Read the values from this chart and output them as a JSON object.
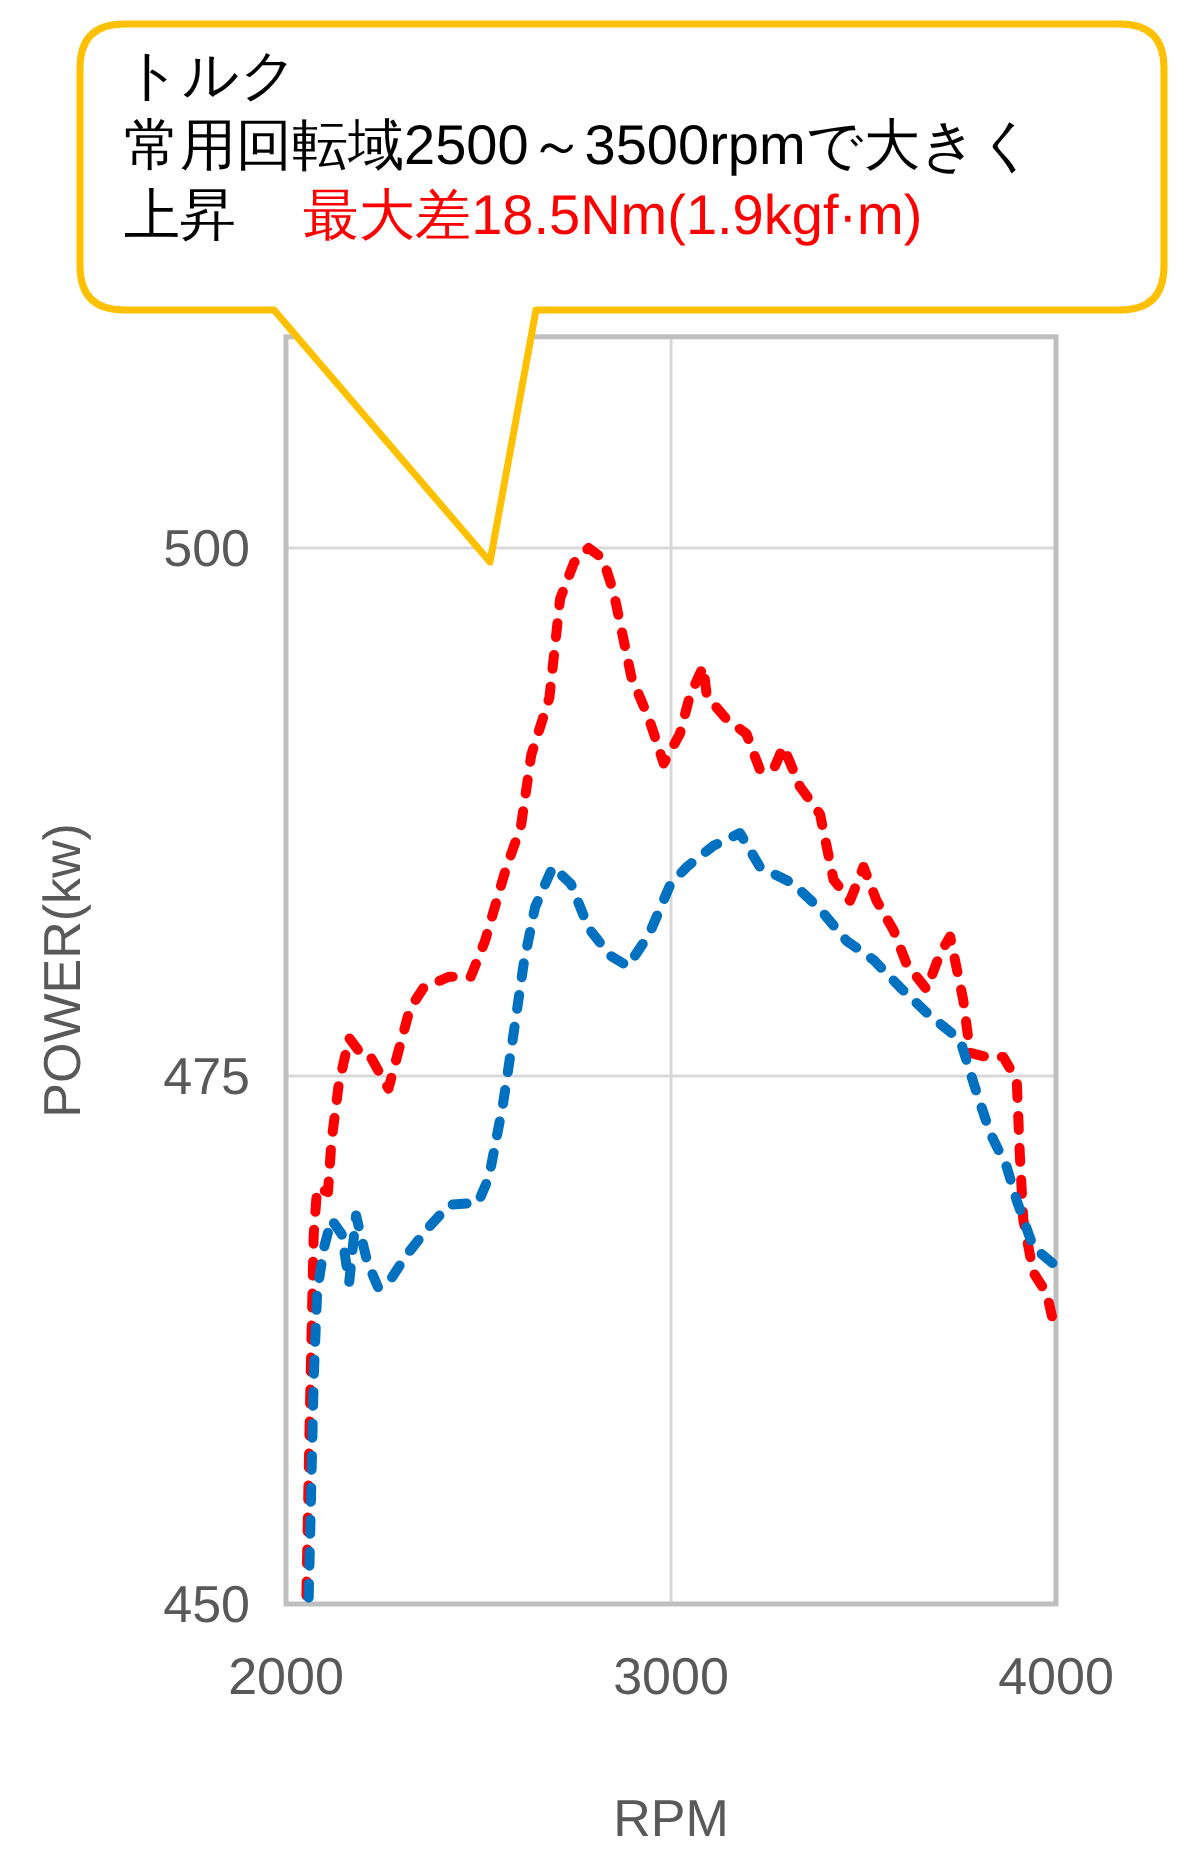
{
  "chart_data": {
    "type": "line",
    "annotations": [
      "トルク",
      "常用回転域2500～3500rpmで大きく上昇",
      "最大差18.5Nm(1.9kgf·m)"
    ],
    "xlabel": "RPM",
    "ylabel": "POWER(kw)",
    "xlim": [
      2000,
      4000
    ],
    "xticks": [
      2000,
      3000,
      4000
    ],
    "ylim": [
      450,
      510
    ],
    "yticks": [
      450,
      475,
      500
    ],
    "grid": true,
    "marker": "none",
    "line_style": "dashed",
    "series": [
      {
        "color": "#ff0000",
        "x": [
          2053,
          2062,
          2072,
          2081,
          2109,
          2118,
          2137,
          2164,
          2201,
          2220,
          2266,
          2294,
          2322,
          2358,
          2424,
          2480,
          2517,
          2571,
          2610,
          2637,
          2684,
          2712,
          2748,
          2786,
          2823,
          2851,
          2897,
          2943,
          2981,
          3023,
          3049,
          3084,
          3093,
          3144,
          3196,
          3231,
          3266,
          3292,
          3335,
          3387,
          3422,
          3465,
          3500,
          3534,
          3578,
          3612,
          3664,
          3699,
          3725,
          3759,
          3777,
          3820,
          3863,
          3898,
          3906,
          3915,
          3941,
          3976,
          4000
        ],
        "values": [
          450.4,
          459.1,
          467.5,
          469.7,
          469.5,
          471.9,
          474.6,
          476.8,
          475.9,
          475.9,
          474.4,
          476.3,
          478.2,
          479.2,
          479.7,
          479.7,
          481.4,
          484.8,
          486.8,
          490.2,
          492.9,
          497.6,
          499.3,
          500.0,
          499.5,
          497.9,
          493.9,
          491.9,
          489.8,
          491.2,
          493.0,
          494.4,
          493.0,
          491.9,
          491.2,
          489.5,
          489.5,
          490.6,
          488.7,
          487.4,
          484.3,
          483.3,
          484.9,
          483.3,
          481.9,
          480.3,
          479.1,
          480.8,
          481.6,
          478.6,
          476.1,
          475.9,
          475.9,
          474.8,
          471.3,
          468.2,
          465.7,
          464.7,
          462.8
        ]
      },
      {
        "color": "#0070c0",
        "x": [
          2059,
          2072,
          2081,
          2099,
          2118,
          2145,
          2164,
          2182,
          2211,
          2239,
          2266,
          2312,
          2369,
          2424,
          2499,
          2527,
          2563,
          2591,
          2618,
          2647,
          2693,
          2740,
          2786,
          2842,
          2888,
          2943,
          2999,
          3041,
          3110,
          3179,
          3231,
          3318,
          3387,
          3456,
          3526,
          3595,
          3664,
          3751,
          3794,
          3829,
          3872,
          3898,
          3941,
          4000
        ],
        "values": [
          450.3,
          460.7,
          464.8,
          466.9,
          468.2,
          467.5,
          465.2,
          468.4,
          466.2,
          465.0,
          465.2,
          466.5,
          467.8,
          468.9,
          469.0,
          470.2,
          473.6,
          477.0,
          480.4,
          483.0,
          484.9,
          484.1,
          482.0,
          480.7,
          480.2,
          481.7,
          484.1,
          484.9,
          485.9,
          486.5,
          484.9,
          484.1,
          482.9,
          481.4,
          480.5,
          479.2,
          478.0,
          476.7,
          474.2,
          472.3,
          470.7,
          469.1,
          466.9,
          466.0
        ]
      }
    ]
  }
}
